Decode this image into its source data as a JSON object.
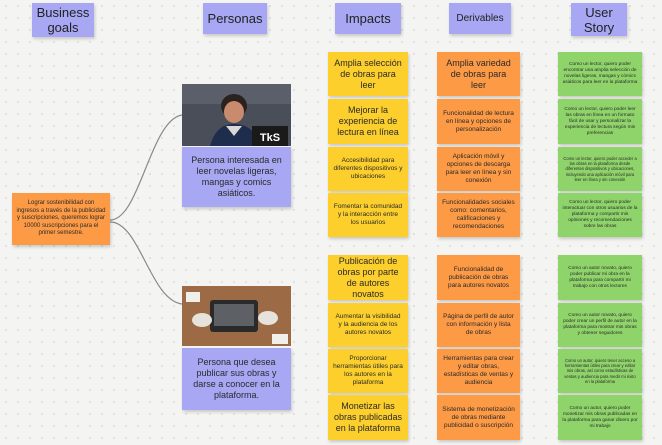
{
  "headers": {
    "business_goals": "Business goals",
    "personas": "Personas",
    "impacts": "Impacts",
    "derivables": "Derivables",
    "user_story": "User Story"
  },
  "business_goal": "Lograr sostenibilidad con ingresos a través de la publicidad y suscripciones, queremos lograr 10000 suscripciones para el primer semestre.",
  "personas": [
    {
      "text": "Persona interesada en leer novelas ligeras, mangas y comics asiáticos.",
      "photo_caption": "TkS"
    },
    {
      "text": "Persona que desea publicar sus obras y darse a conocer en la plataforma."
    }
  ],
  "impacts": [
    "Amplia selección de obras para leer",
    "Mejorar la experiencia de lectura en línea",
    "Accesibilidad para diferentes dispositivos y ubicaciones",
    "Fomentar la comunidad y la interacción entre los usuarios",
    "Publicación de obras por parte de autores novatos",
    "Aumentar la visibilidad y la audiencia de los autores novatos",
    "Proporcionar herramientas útiles para los autores en la plataforma",
    "Monetizar las obras publicadas en la plataforma"
  ],
  "derivables": [
    "Amplia variedad de obras para leer",
    "Funcionalidad de lectura en línea y opciones de personalización",
    "Aplicación móvil y opciones de descarga para leer en línea y sin conexión",
    "Funcionalidades sociales como: comentarios, calificaciones y recomendaciones",
    "Funcionalidad de publicación de obras para autores novatos",
    "Página de perfil de autor con información y lista de obras",
    "Herramientas para crear y editar obras, estadísticas de ventas y audiencia",
    "Sistema de monetización de obras mediante publicidad o suscripción"
  ],
  "user_stories": [
    "Como un lector, quiero poder encontrar una amplia selección de novelas ligeras, mangas y cómics asiáticos para leer en la plataforma",
    "Como un lector, quiero poder leer las obras en línea en un formato fácil de usar y personalizar la experiencia de lectura según mis preferencias",
    "Como un lector, quiero poder acceder a las obras en la plataforma desde diferentes dispositivos y ubicaciones, incluyendo una aplicación móvil para leer en línea y sin conexión",
    "Como un lector, quiero poder interactuar con otros usuarios de la plataforma y compartir mis opiniones y recomendaciones sobre las obras",
    "Como un autor novato, quiero poder publicar mi obra en la plataforma para compartir mi trabajo con otros lectores",
    "Como un autor novato, quiero poder crear un perfil de autor en la plataforma para mostrar mis obras y obtener seguidores",
    "Como un autor, quiero tener acceso a herramientas útiles para crear y editar mis obras, así como estadísticas de ventas y audiencia para medir mi éxito en la plataforma",
    "Como un autor, quiero poder monetizar mis obras publicadas en la plataforma para ganar dinero por mi trabajo"
  ],
  "colors": {
    "persona_blue": "#a7a7f3",
    "impact_yellow": "#fccf2c",
    "derivable_orange": "#fd9a45",
    "story_green": "#8fd46a",
    "connector": "#8a8a8a"
  }
}
